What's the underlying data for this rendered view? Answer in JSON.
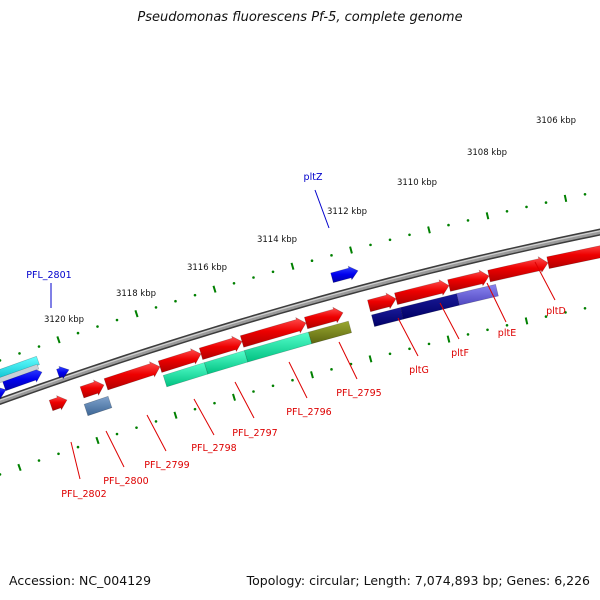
{
  "title": "Pseudomonas fluorescens Pf-5, complete genome",
  "footer": {
    "accession": "Accession: NC_004129",
    "summary": "Topology: circular; Length: 7,074,893 bp; Genes: 6,226"
  },
  "ticks": [
    {
      "label": "3106 kbp"
    },
    {
      "label": "3108 kbp"
    },
    {
      "label": "3110 kbp"
    },
    {
      "label": "3112 kbp"
    },
    {
      "label": "3114 kbp"
    },
    {
      "label": "3116 kbp"
    },
    {
      "label": "3118 kbp"
    },
    {
      "label": "3120 kbp"
    }
  ],
  "genes": [
    {
      "label": "pltD",
      "color": "#dd0000"
    },
    {
      "label": "pltE",
      "color": "#dd0000"
    },
    {
      "label": "pltF",
      "color": "#dd0000"
    },
    {
      "label": "pltG",
      "color": "#dd0000"
    },
    {
      "label": "PFL_2795",
      "color": "#dd0000"
    },
    {
      "label": "PFL_2796",
      "color": "#dd0000"
    },
    {
      "label": "PFL_2797",
      "color": "#dd0000"
    },
    {
      "label": "PFL_2798",
      "color": "#dd0000"
    },
    {
      "label": "PFL_2799",
      "color": "#dd0000"
    },
    {
      "label": "PFL_2800",
      "color": "#dd0000"
    },
    {
      "label": "PFL_2802",
      "color": "#dd0000"
    },
    {
      "label": "pltZ",
      "color": "#0000cc"
    },
    {
      "label": "PFL_2801",
      "color": "#0000cc"
    }
  ]
}
